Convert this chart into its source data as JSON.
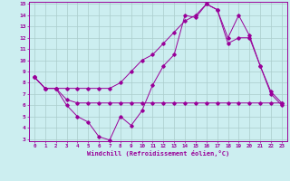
{
  "xlabel": "Windchill (Refroidissement éolien,°C)",
  "bg_color": "#cceef0",
  "line_color": "#990099",
  "grid_color": "#aacccc",
  "xlim": [
    -0.5,
    23.5
  ],
  "ylim": [
    2.8,
    15.2
  ],
  "xticks": [
    0,
    1,
    2,
    3,
    4,
    5,
    6,
    7,
    8,
    9,
    10,
    11,
    12,
    13,
    14,
    15,
    16,
    17,
    18,
    19,
    20,
    21,
    22,
    23
  ],
  "yticks": [
    3,
    4,
    5,
    6,
    7,
    8,
    9,
    10,
    11,
    12,
    13,
    14,
    15
  ],
  "s1_x": [
    0,
    1,
    2,
    3,
    4,
    5,
    6,
    7,
    8,
    9,
    10,
    11,
    12,
    13,
    14,
    15,
    16,
    17,
    18,
    19,
    20,
    21,
    22,
    23
  ],
  "s1_y": [
    8.5,
    7.5,
    7.5,
    6.0,
    5.0,
    4.5,
    3.2,
    2.9,
    5.0,
    4.2,
    5.5,
    7.8,
    9.5,
    10.5,
    14.0,
    13.8,
    15.0,
    14.5,
    11.5,
    12.0,
    12.0,
    9.5,
    7.0,
    6.0
  ],
  "s2_x": [
    0,
    1,
    2,
    3,
    4,
    5,
    6,
    7,
    8,
    9,
    10,
    11,
    12,
    13,
    14,
    15,
    16,
    17,
    18,
    19,
    20,
    21,
    22,
    23
  ],
  "s2_y": [
    8.5,
    7.5,
    7.5,
    6.5,
    6.2,
    6.2,
    6.2,
    6.2,
    6.2,
    6.2,
    6.2,
    6.2,
    6.2,
    6.2,
    6.2,
    6.2,
    6.2,
    6.2,
    6.2,
    6.2,
    6.2,
    6.2,
    6.2,
    6.2
  ],
  "s3_x": [
    0,
    1,
    2,
    3,
    4,
    5,
    6,
    7,
    8,
    9,
    10,
    11,
    12,
    13,
    14,
    15,
    16,
    17,
    18,
    19,
    20,
    21,
    22,
    23
  ],
  "s3_y": [
    8.5,
    7.5,
    7.5,
    7.5,
    7.5,
    7.5,
    7.5,
    7.5,
    8.0,
    9.0,
    10.0,
    10.5,
    11.5,
    12.5,
    13.5,
    14.0,
    15.0,
    14.5,
    12.0,
    14.0,
    12.2,
    9.5,
    7.2,
    6.2
  ]
}
